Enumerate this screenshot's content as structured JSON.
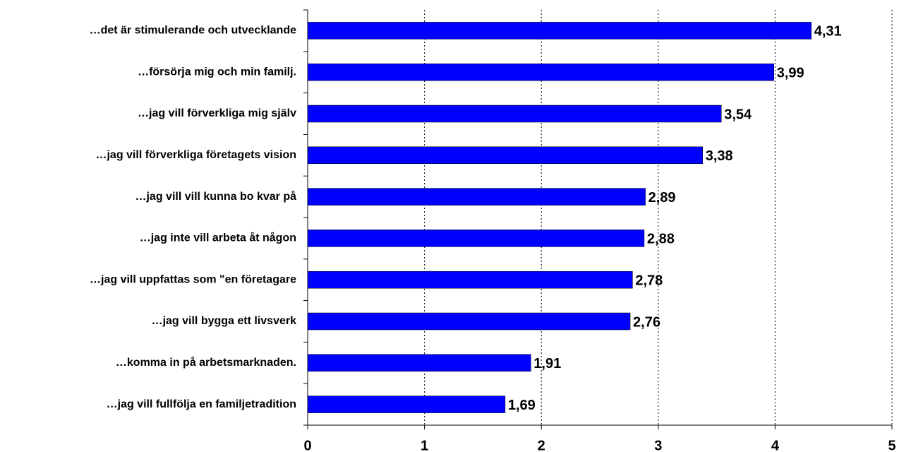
{
  "chart_data": {
    "type": "bar",
    "orientation": "horizontal",
    "categories": [
      "…det är stimulerande och utvecklande",
      "…försörja mig och min familj.",
      "…jag vill förverkliga mig själv",
      "…jag vill förverkliga företagets vision",
      "…jag vill vill kunna bo kvar på",
      "…jag inte vill arbeta åt någon",
      "…jag vill uppfattas som \"en företagare",
      "…jag vill bygga ett livsverk",
      "…komma in på arbetsmarknaden.",
      "…jag vill fullfölja en familjetradition"
    ],
    "values": [
      4.31,
      3.99,
      3.54,
      3.38,
      2.89,
      2.88,
      2.78,
      2.76,
      1.91,
      1.69
    ],
    "value_labels": [
      "4,31",
      "3,99",
      "3,54",
      "3,38",
      "2,89",
      "2,88",
      "2,78",
      "2,76",
      "1,91",
      "1,69"
    ],
    "color": "#0000ff",
    "xlim": [
      0,
      5
    ],
    "xticks": [
      0,
      1,
      2,
      3,
      4,
      5
    ],
    "grid": true
  }
}
